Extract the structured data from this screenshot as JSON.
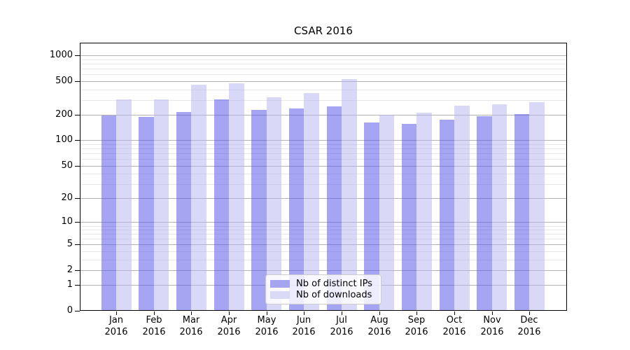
{
  "title": "CSAR 2016",
  "chart_data": {
    "type": "bar",
    "title": "CSAR 2016",
    "categories": [
      "Jan",
      "Feb",
      "Mar",
      "Apr",
      "May",
      "Jun",
      "Jul",
      "Aug",
      "Sep",
      "Oct",
      "Nov",
      "Dec"
    ],
    "category_year": "2016",
    "series": [
      {
        "name": "Nb of distinct IPs",
        "fill": "rgba(82,82,232,0.52)",
        "swatch": "#a4a4ef",
        "values": [
          197,
          190,
          218,
          305,
          230,
          237,
          253,
          163,
          157,
          177,
          192,
          205
        ]
      },
      {
        "name": "Nb of downloads",
        "fill": "rgba(180,180,240,0.5)",
        "swatch": "#dadaf7",
        "values": [
          303,
          307,
          455,
          475,
          320,
          365,
          525,
          199,
          211,
          255,
          267,
          280
        ]
      }
    ],
    "xlabel": "",
    "ylabel": "",
    "yscale": "log1p",
    "yticks": [
      1000,
      500,
      200,
      100,
      50,
      20,
      10,
      5,
      2,
      1,
      0
    ],
    "yminor_gridlines": [
      3,
      4,
      6,
      7,
      8,
      9,
      30,
      40,
      60,
      70,
      80,
      90,
      300,
      400,
      600,
      700,
      800,
      900
    ],
    "ylim": [
      0,
      1357
    ],
    "grid": "both",
    "legend_position": "lower center",
    "colors": {
      "grid_major": "#b3b3b3",
      "grid_minor": "#e7e7e7",
      "axis": "#000000",
      "legend_border": "#cccccc",
      "background": "#ffffff"
    }
  }
}
